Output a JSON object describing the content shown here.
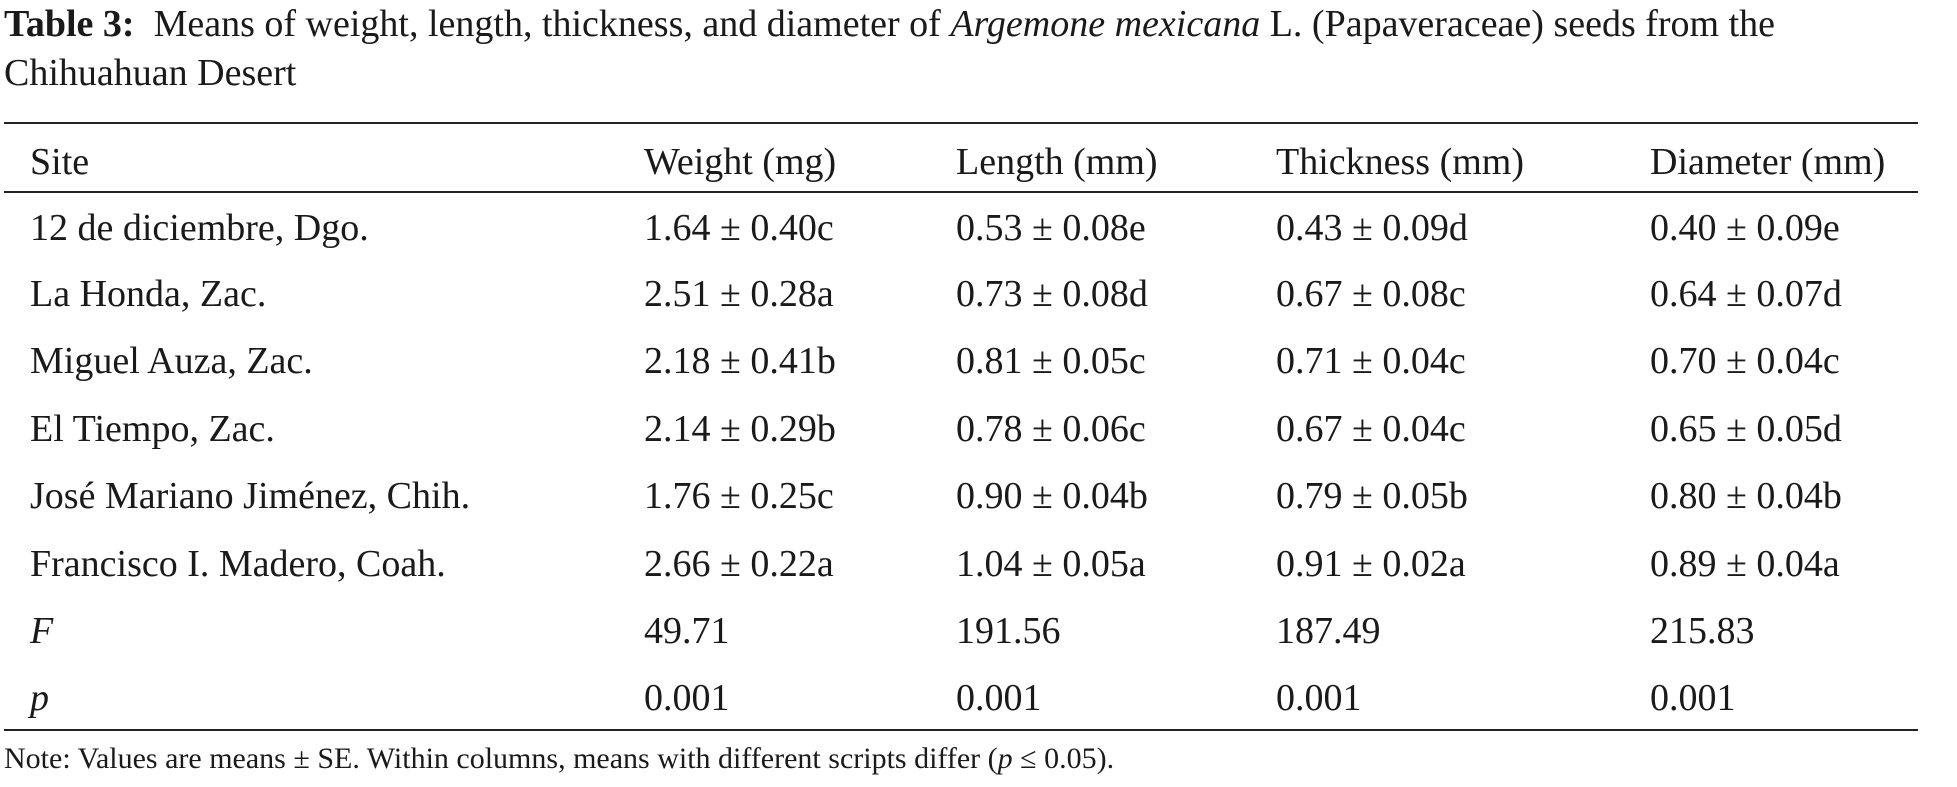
{
  "caption": {
    "label": "Table 3:",
    "text_before": "Means of weight, length, thickness, and diameter of",
    "species": "Argemone mexicana",
    "text_after": "L. (Papaveraceae) seeds from the Chihuahuan Desert"
  },
  "table": {
    "headers": [
      "Site",
      "Weight (mg)",
      "Length (mm)",
      "Thickness (mm)",
      "Diameter (mm)"
    ],
    "rows": [
      [
        "12 de diciembre, Dgo.",
        "1.64 ± 0.40c",
        "0.53 ± 0.08e",
        "0.43 ± 0.09d",
        "0.40 ± 0.09e"
      ],
      [
        "La Honda, Zac.",
        "2.51 ± 0.28a",
        "0.73 ± 0.08d",
        "0.67 ± 0.08c",
        "0.64 ± 0.07d"
      ],
      [
        "Miguel Auza, Zac.",
        "2.18 ± 0.41b",
        "0.81 ± 0.05c",
        "0.71 ± 0.04c",
        "0.70 ± 0.04c"
      ],
      [
        "El Tiempo, Zac.",
        "2.14 ± 0.29b",
        "0.78 ± 0.06c",
        "0.67 ± 0.04c",
        "0.65 ± 0.05d"
      ],
      [
        "José Mariano Jiménez, Chih.",
        "1.76 ± 0.25c",
        "0.90 ± 0.04b",
        "0.79 ± 0.05b",
        "0.80 ± 0.04b"
      ],
      [
        "Francisco I. Madero, Coah.",
        "2.66 ± 0.22a",
        "1.04 ± 0.05a",
        "0.91 ± 0.02a",
        "0.89 ± 0.04a"
      ]
    ],
    "stats": [
      [
        "F",
        "49.71",
        "191.56",
        "187.49",
        "215.83"
      ],
      [
        "p",
        "0.001",
        "0.001",
        "0.001",
        "0.001"
      ]
    ]
  },
  "note": {
    "text_before": "Note: Values are means ± SE. Within columns, means with different scripts differ (",
    "symbol": "p",
    "text_after": " ≤ 0.05)."
  }
}
